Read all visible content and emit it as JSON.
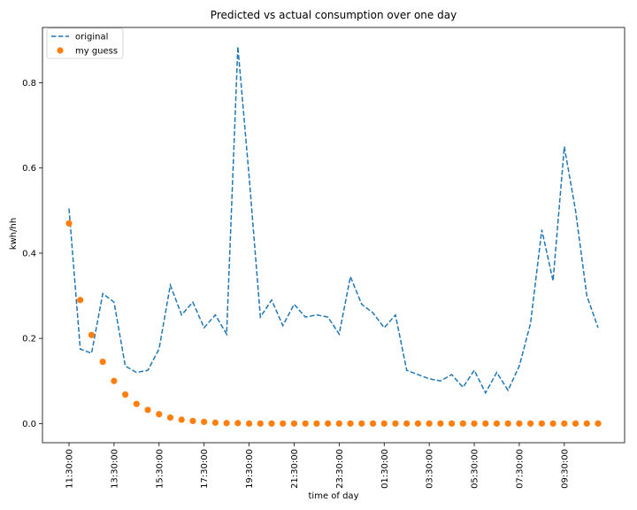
{
  "chart_data": {
    "type": "line",
    "title": "Predicted vs actual consumption over one day",
    "xlabel": "time of day",
    "ylabel": "kwh/hh",
    "ylim": [
      -0.045,
      0.93
    ],
    "yticks": [
      0.0,
      0.2,
      0.4,
      0.6,
      0.8
    ],
    "ytick_labels": [
      "0.0",
      "0.2",
      "0.4",
      "0.6",
      "0.8"
    ],
    "x_start": "11:30:00",
    "x_step_minutes": 30,
    "xtick_labels": [
      "11:30:00",
      "13:30:00",
      "15:30:00",
      "17:30:00",
      "19:30:00",
      "21:30:00",
      "23:30:00",
      "01:30:00",
      "03:30:00",
      "05:30:00",
      "07:30:00",
      "09:30:00"
    ],
    "grid": false,
    "legend": {
      "position": "top-left",
      "entries": [
        {
          "label": "original",
          "style": "dashed-line",
          "color": "#1f77b4"
        },
        {
          "label": "my guess",
          "style": "marker",
          "color": "#ff7f0e"
        }
      ]
    },
    "series": [
      {
        "name": "original",
        "style": "dashed",
        "color": "#1f77b4",
        "values": [
          0.505,
          0.175,
          0.165,
          0.305,
          0.285,
          0.135,
          0.12,
          0.125,
          0.175,
          0.325,
          0.255,
          0.285,
          0.225,
          0.255,
          0.21,
          0.885,
          0.58,
          0.25,
          0.29,
          0.23,
          0.28,
          0.25,
          0.255,
          0.25,
          0.21,
          0.345,
          0.28,
          0.26,
          0.225,
          0.255,
          0.125,
          0.115,
          0.105,
          0.1,
          0.115,
          0.085,
          0.125,
          0.072,
          0.12,
          0.078,
          0.135,
          0.235,
          0.455,
          0.335,
          0.65,
          0.5,
          0.3,
          0.225
        ]
      },
      {
        "name": "my guess",
        "style": "markers",
        "color": "#ff7f0e",
        "values": [
          0.47,
          0.29,
          0.208,
          0.145,
          0.1,
          0.068,
          0.046,
          0.032,
          0.022,
          0.014,
          0.009,
          0.006,
          0.004,
          0.002,
          0.001,
          0.001,
          0.0,
          0.0,
          0.0,
          0.0,
          0.0,
          0.0,
          0.0,
          0.0,
          0.0,
          0.0,
          0.0,
          0.0,
          0.0,
          0.0,
          0.0,
          0.0,
          0.0,
          0.0,
          0.0,
          0.0,
          0.0,
          0.0,
          0.0,
          0.0,
          0.0,
          0.0,
          0.0,
          0.0,
          0.0,
          0.0,
          0.0,
          0.0
        ]
      }
    ]
  }
}
